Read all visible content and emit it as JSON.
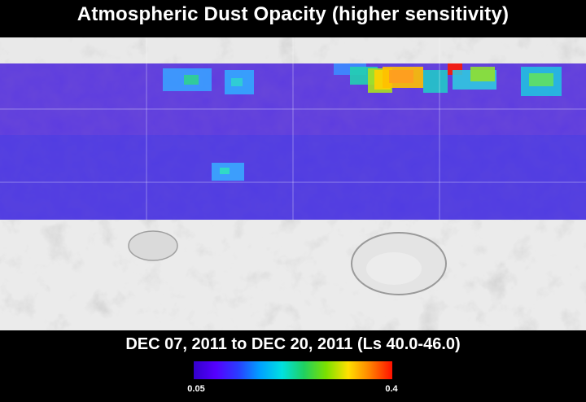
{
  "title": "Atmospheric Dust Opacity (higher sensitivity)",
  "subtitle": "DEC 07, 2011 to DEC 20, 2011 (Ls 40.0-46.0)",
  "colorbar": {
    "min_label": "0.05",
    "max_label": "0.4",
    "min": 0.05,
    "max": 0.4,
    "colors": [
      "#3300cc",
      "#5500ff",
      "#2a3cff",
      "#00a0ff",
      "#00e0e0",
      "#20d060",
      "#7be000",
      "#ffe000",
      "#ff8000",
      "#ff1000"
    ]
  },
  "map": {
    "data_band_color": "#5d3ce0",
    "terrain_color": "#d2d2d2"
  }
}
